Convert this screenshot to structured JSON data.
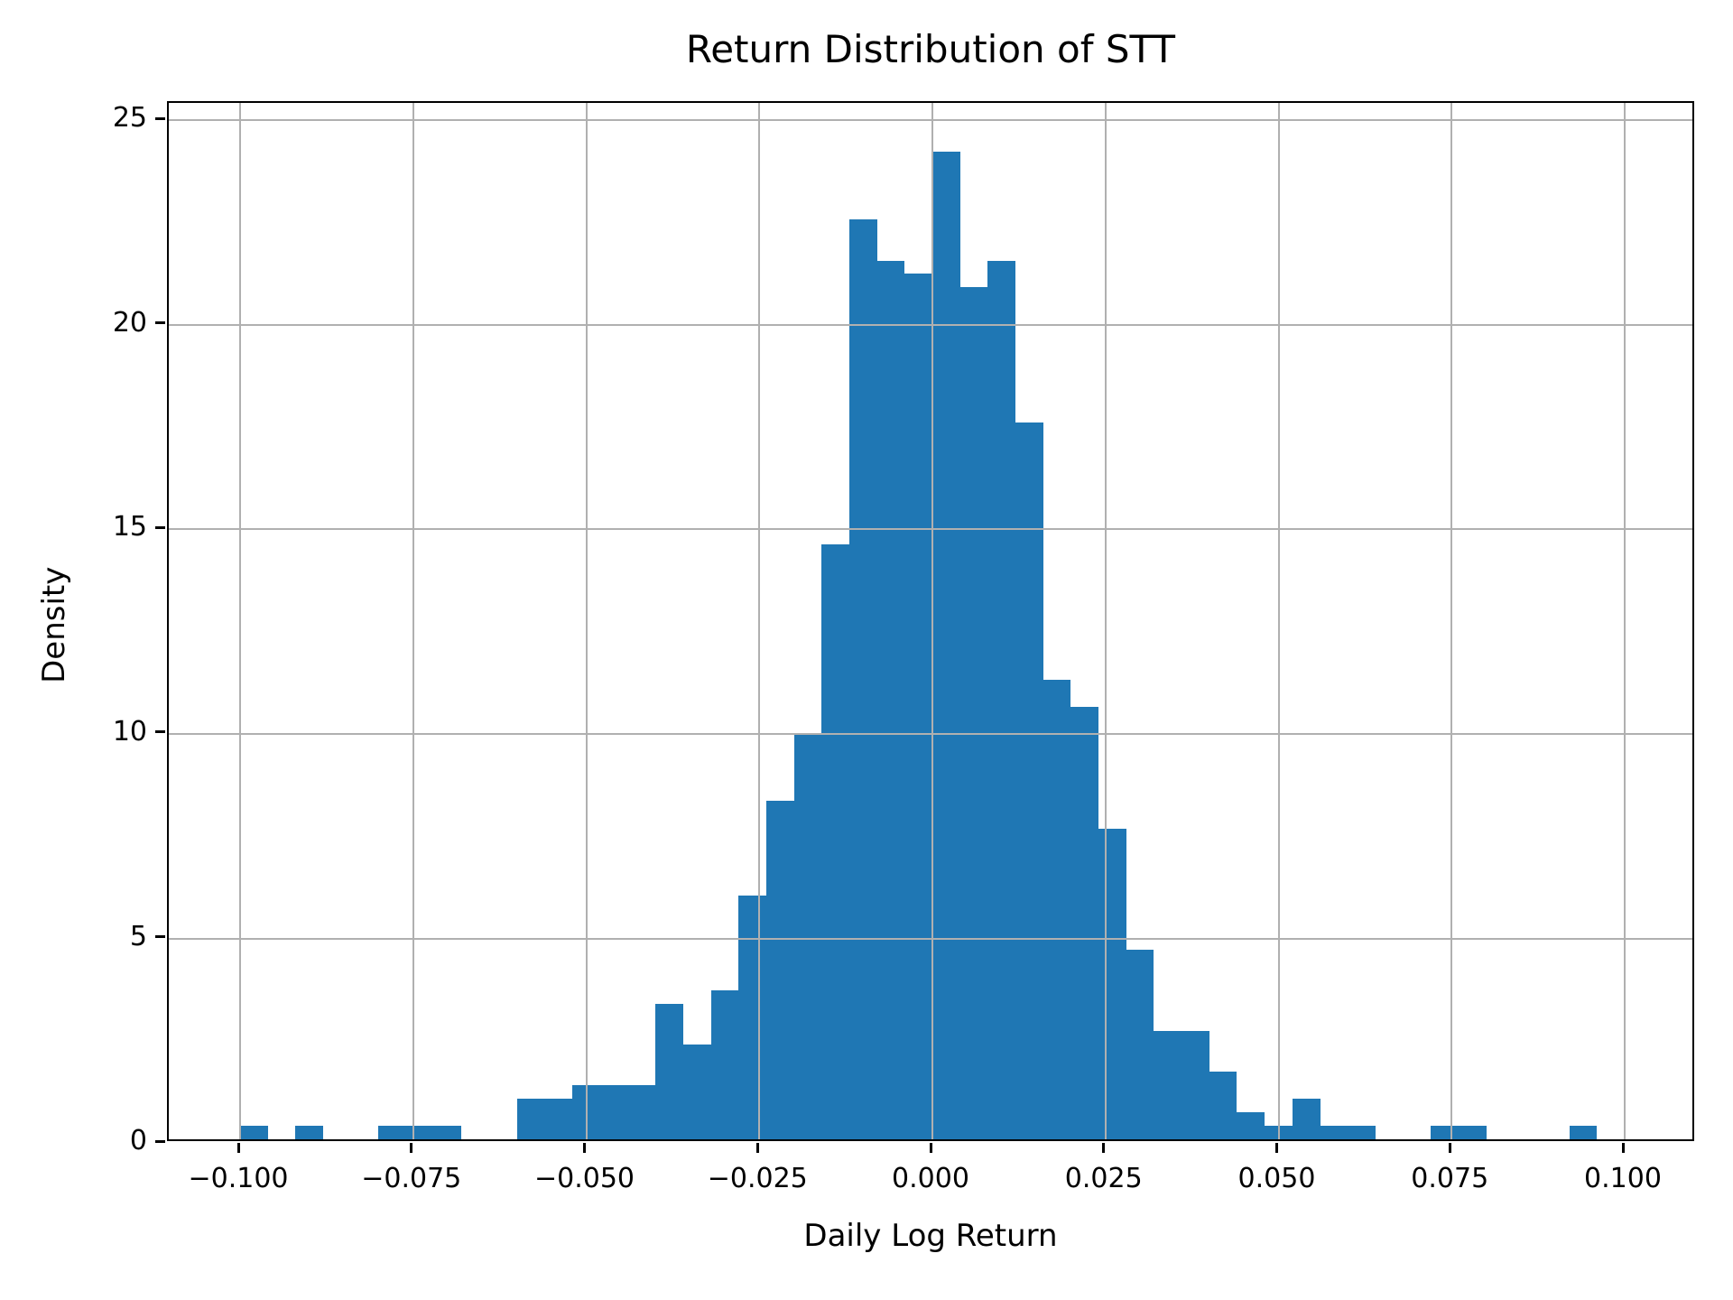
{
  "chart_data": {
    "type": "bar",
    "subtype": "histogram-density",
    "title": "Return Distribution of STT",
    "xlabel": "Daily Log Return",
    "ylabel": "Density",
    "bar_color": "#1f77b4",
    "grid_color": "#b0b0b0",
    "spine_color": "#000000",
    "background_color": "#ffffff",
    "grid": true,
    "grid_above_bars": true,
    "legend": "none",
    "bin_start": -0.1,
    "bin_width": 0.004,
    "densities": [
      0.33,
      0,
      0.33,
      0,
      0,
      0.33,
      0.33,
      0.33,
      0,
      0,
      0.99,
      0.99,
      1.32,
      1.32,
      1.32,
      3.31,
      2.31,
      3.64,
      5.95,
      8.27,
      9.92,
      14.55,
      22.49,
      21.49,
      21.16,
      24.14,
      20.83,
      21.49,
      17.52,
      11.24,
      10.58,
      7.6,
      4.63,
      2.65,
      2.65,
      1.65,
      0.66,
      0.33,
      0.99,
      0.33,
      0.33,
      0,
      0,
      0.33,
      0.33,
      0,
      0,
      0,
      0.33
    ],
    "xlim": [
      -0.1103,
      0.1103
    ],
    "ylim": [
      0,
      25.43
    ],
    "x_ticks": [
      {
        "value": -0.1,
        "label": "−0.100"
      },
      {
        "value": -0.075,
        "label": "−0.075"
      },
      {
        "value": -0.05,
        "label": "−0.050"
      },
      {
        "value": -0.025,
        "label": "−0.025"
      },
      {
        "value": 0.0,
        "label": "0.000"
      },
      {
        "value": 0.025,
        "label": "0.025"
      },
      {
        "value": 0.05,
        "label": "0.050"
      },
      {
        "value": 0.075,
        "label": "0.075"
      },
      {
        "value": 0.1,
        "label": "0.100"
      }
    ],
    "y_ticks": [
      {
        "value": 0,
        "label": "0"
      },
      {
        "value": 5,
        "label": "5"
      },
      {
        "value": 10,
        "label": "10"
      },
      {
        "value": 15,
        "label": "15"
      },
      {
        "value": 20,
        "label": "20"
      },
      {
        "value": 25,
        "label": "25"
      }
    ]
  }
}
